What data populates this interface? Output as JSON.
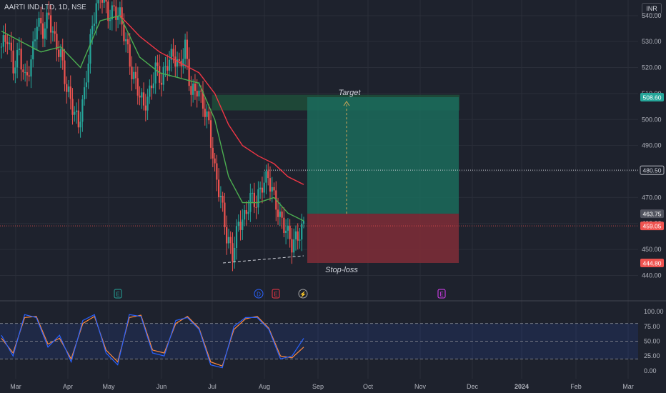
{
  "header": {
    "symbol_line": "AARTI IND LTD, 1D, NSE",
    "currency": "INR"
  },
  "colors": {
    "background": "#1e222d",
    "grid": "#2a2e39",
    "up": "#26a69a",
    "down": "#ef5350",
    "ema_fast": "#4caf50",
    "ema_slow": "#f23645",
    "target_zone": "#1b6b5c",
    "stop_zone": "#7a2c37",
    "stoch_k": "#2962ff",
    "stoch_d": "#ff8a3d",
    "resistance_zone": "#1f4d3a"
  },
  "chart_data": [
    {
      "type": "candlestick",
      "title": "",
      "y_axis_ticks": [
        "540.00",
        "530.00",
        "520.00",
        "510.00",
        "500.00",
        "490.00",
        "480.00",
        "470.00",
        "460.00",
        "450.00",
        "440.00"
      ],
      "ylim": [
        436,
        546
      ],
      "x_axis_ticks": [
        "Mar",
        "Apr",
        "May",
        "Jun",
        "Jul",
        "Aug",
        "Sep",
        "Oct",
        "Nov",
        "Dec",
        "2024",
        "Feb",
        "Mar"
      ],
      "price_labels": [
        {
          "name": "target",
          "value": "508.60",
          "color": "#26a69a"
        },
        {
          "name": "resistance",
          "value": "480.50",
          "color": "#d1d4dc"
        },
        {
          "name": "entry",
          "value": "463.75",
          "color": "#50535e"
        },
        {
          "name": "last",
          "value": "459.05",
          "color": "#ef5350"
        },
        {
          "name": "stop",
          "value": "444.80",
          "color": "#ef5350"
        }
      ],
      "annotations": {
        "target": "Target",
        "stop": "Stop-loss"
      },
      "event_markers": [
        {
          "letter": "E",
          "month_pos": "May-early",
          "style": "earnings-green"
        },
        {
          "letter": "D",
          "month_pos": "Aug-early",
          "style": "dividend-blue"
        },
        {
          "letter": "E",
          "month_pos": "Aug-early",
          "style": "earnings-red"
        },
        {
          "letter": "⚡",
          "month_pos": "Aug-late",
          "style": "split"
        },
        {
          "letter": "E",
          "month_pos": "Nov-late",
          "style": "earnings-pink"
        }
      ],
      "trade_setup": {
        "entry": 463.75,
        "target": 508.6,
        "stop": 444.8,
        "end_month": "Nov"
      },
      "resistance_zone": [
        503.5,
        509.5
      ],
      "candles_close_path": [
        [
          0,
          528
        ],
        [
          3,
          532
        ],
        [
          6,
          520
        ],
        [
          9,
          526
        ],
        [
          12,
          515
        ],
        [
          15,
          522
        ],
        [
          18,
          538
        ],
        [
          21,
          534
        ],
        [
          24,
          540
        ],
        [
          27,
          530
        ],
        [
          30,
          525
        ],
        [
          33,
          512
        ],
        [
          36,
          505
        ],
        [
          39,
          498
        ],
        [
          42,
          510
        ],
        [
          45,
          530
        ],
        [
          48,
          545
        ],
        [
          51,
          548
        ],
        [
          54,
          540
        ],
        [
          57,
          542
        ],
        [
          60,
          540
        ],
        [
          63,
          530
        ],
        [
          66,
          518
        ],
        [
          69,
          512
        ],
        [
          72,
          505
        ],
        [
          75,
          510
        ],
        [
          78,
          520
        ],
        [
          81,
          515
        ],
        [
          84,
          522
        ],
        [
          87,
          525
        ],
        [
          90,
          520
        ],
        [
          93,
          528
        ],
        [
          96,
          510
        ],
        [
          99,
          512
        ],
        [
          102,
          506
        ],
        [
          105,
          498
        ],
        [
          108,
          480
        ],
        [
          111,
          470
        ],
        [
          114,
          455
        ],
        [
          117,
          448
        ],
        [
          120,
          460
        ],
        [
          123,
          462
        ],
        [
          126,
          470
        ],
        [
          129,
          468
        ],
        [
          132,
          475
        ],
        [
          135,
          478
        ],
        [
          138,
          470
        ],
        [
          141,
          462
        ],
        [
          144,
          458
        ],
        [
          147,
          452
        ],
        [
          150,
          455
        ],
        [
          153,
          459
        ]
      ],
      "ema_fast_path": [
        [
          0,
          534
        ],
        [
          10,
          530
        ],
        [
          20,
          526
        ],
        [
          30,
          528
        ],
        [
          40,
          520
        ],
        [
          50,
          538
        ],
        [
          60,
          540
        ],
        [
          70,
          524
        ],
        [
          80,
          518
        ],
        [
          90,
          516
        ],
        [
          100,
          514
        ],
        [
          108,
          500
        ],
        [
          115,
          478
        ],
        [
          122,
          468
        ],
        [
          130,
          468
        ],
        [
          138,
          470
        ],
        [
          145,
          464
        ],
        [
          153,
          461
        ]
      ],
      "ema_slow_path": [
        [
          60,
          540
        ],
        [
          70,
          532
        ],
        [
          80,
          526
        ],
        [
          90,
          522
        ],
        [
          100,
          518
        ],
        [
          108,
          510
        ],
        [
          115,
          498
        ],
        [
          122,
          490
        ],
        [
          130,
          486
        ],
        [
          138,
          483
        ],
        [
          145,
          478
        ],
        [
          153,
          475
        ]
      ]
    },
    {
      "type": "line",
      "title": "",
      "y_axis_ticks": [
        "100.00",
        "75.00",
        "50.00",
        "25.00",
        "0.00"
      ],
      "ylim": [
        -5,
        105
      ],
      "band": [
        20,
        80
      ],
      "series": [
        {
          "values_k": [
            60,
            25,
            95,
            90,
            40,
            60,
            15,
            85,
            95,
            30,
            10,
            95,
            92,
            30,
            25,
            85,
            90,
            70,
            10,
            5,
            75,
            90,
            90,
            70,
            20,
            25,
            55
          ]
        },
        {
          "values_d": [
            55,
            30,
            90,
            92,
            45,
            55,
            20,
            80,
            92,
            35,
            15,
            90,
            94,
            35,
            30,
            80,
            92,
            72,
            15,
            8,
            70,
            88,
            92,
            72,
            25,
            22,
            40
          ]
        }
      ]
    }
  ]
}
